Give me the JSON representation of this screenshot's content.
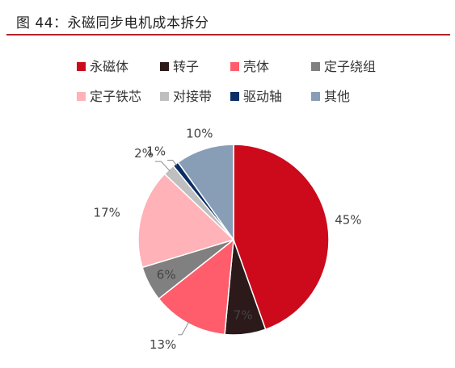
{
  "chart_data": {
    "type": "pie",
    "title": "图 44：永磁同步电机成本拆分",
    "unit": "%",
    "legend_position": "top",
    "start_angle_deg": 0,
    "direction": "clockwise",
    "slices": [
      {
        "name": "永磁体",
        "value": 45,
        "label": "45%",
        "color": "#cc0a1b"
      },
      {
        "name": "转子",
        "value": 7,
        "label": "7%",
        "color": "#2b1a19"
      },
      {
        "name": "壳体",
        "value": 13,
        "label": "13%",
        "color": "#ff5d6c"
      },
      {
        "name": "定子绕组",
        "value": 6,
        "label": "6%",
        "color": "#808080"
      },
      {
        "name": "定子铁芯",
        "value": 17,
        "label": "17%",
        "color": "#ffb2b7"
      },
      {
        "name": "对接带",
        "value": 2,
        "label": "2%",
        "color": "#bfbfbf"
      },
      {
        "name": "驱动轴",
        "value": 1,
        "label": "1%",
        "color": "#0b2e66"
      },
      {
        "name": "其他",
        "value": 10,
        "label": "10%",
        "color": "#889eb6"
      }
    ]
  },
  "colors": {
    "title_rule": "#b4232a",
    "dark_label_text": "#444444",
    "light_label_text": "#ffffff"
  }
}
